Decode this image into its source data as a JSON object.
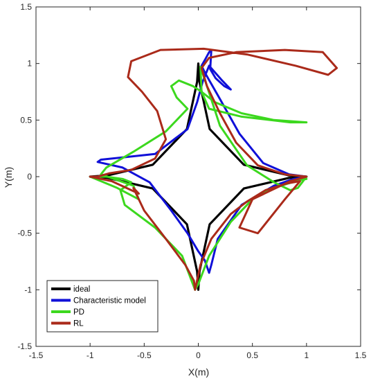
{
  "chart_data": {
    "type": "line",
    "title": "",
    "xlabel": "X(m)",
    "ylabel": "Y(m)",
    "xlim": [
      -1.5,
      1.5
    ],
    "ylim": [
      -1.5,
      1.5
    ],
    "xticks": [
      -1.5,
      -1,
      -0.5,
      0,
      0.5,
      1,
      1.5
    ],
    "yticks": [
      -1.5,
      -1,
      -0.5,
      0,
      0.5,
      1,
      1.5
    ],
    "xtick_labels": [
      "-1.5",
      "-1",
      "-0.5",
      "0",
      "0.5",
      "1",
      "1.5"
    ],
    "ytick_labels": [
      "-1.5",
      "-1",
      "-0.5",
      "0",
      "0.5",
      "1",
      "1.5"
    ],
    "grid": false,
    "legend_position": "bottom-left",
    "series": [
      {
        "name": "ideal",
        "color": "#000000",
        "x": [
          1,
          0.838,
          0.421,
          0.105,
          0.011,
          0,
          -0.011,
          -0.105,
          -0.421,
          -0.838,
          -1,
          -0.838,
          -0.421,
          -0.105,
          -0.011,
          0,
          0.011,
          0.105,
          0.421,
          0.838,
          1
        ],
        "y": [
          0,
          0.011,
          0.105,
          0.421,
          0.838,
          1,
          0.838,
          0.421,
          0.105,
          0.011,
          0,
          -0.011,
          -0.105,
          -0.421,
          -0.838,
          -1,
          -0.838,
          -0.421,
          -0.105,
          -0.011,
          0
        ]
      },
      {
        "name": "Characteristic model",
        "color": "#1010d8",
        "x": [
          1,
          0.84,
          0.6,
          0.38,
          0.18,
          0.06,
          0.03,
          0.06,
          0.1,
          0.12,
          0.11,
          0.16,
          0.24,
          0.3,
          0.22,
          0.1,
          0.04,
          -0.01,
          -0.1,
          -0.4,
          -0.7,
          -0.9,
          -0.93,
          -0.7,
          -0.45,
          -0.25,
          -0.1,
          0,
          0.06,
          0.1,
          0.12,
          0.18,
          0.4,
          0.7,
          0.88,
          1
        ],
        "y": [
          0,
          0.02,
          0.12,
          0.38,
          0.72,
          0.92,
          0.98,
          1.03,
          1.1,
          1.12,
          0.95,
          0.87,
          0.8,
          0.77,
          0.85,
          0.98,
          0.84,
          0.66,
          0.42,
          0.2,
          0.17,
          0.15,
          0.13,
          0.08,
          -0.05,
          -0.3,
          -0.5,
          -0.66,
          -0.74,
          -0.85,
          -0.78,
          -0.55,
          -0.25,
          -0.08,
          -0.02,
          0
        ]
      },
      {
        "name": "PD",
        "color": "#3cd81e",
        "x": [
          1,
          0.96,
          0.92,
          0.85,
          0.7,
          0.45,
          0.2,
          0.08,
          0.02,
          0.03,
          0.1,
          0.4,
          0.85,
          1.0,
          0.7,
          0.4,
          0.15,
          0.03,
          -0.05,
          -0.18,
          -0.25,
          -0.2,
          -0.1,
          -0.3,
          -0.6,
          -0.85,
          -0.9,
          -0.75,
          -0.6,
          -0.55,
          -0.75,
          -0.95,
          -1,
          -0.85,
          -0.7,
          -0.62,
          -0.72,
          -0.68,
          -0.4,
          -0.15,
          -0.05,
          -0.03,
          0.0,
          0.1,
          0.3,
          0.5,
          0.7,
          0.9,
          1.0,
          0.98,
          1
        ],
        "y": [
          0,
          -0.05,
          -0.1,
          -0.12,
          -0.05,
          0.1,
          0.45,
          0.8,
          0.97,
          0.75,
          0.6,
          0.53,
          0.48,
          0.48,
          0.5,
          0.56,
          0.66,
          0.75,
          0.8,
          0.85,
          0.8,
          0.7,
          0.6,
          0.4,
          0.22,
          0.08,
          0.02,
          -0.03,
          -0.08,
          -0.2,
          -0.1,
          -0.02,
          0,
          0,
          -0.02,
          -0.05,
          -0.12,
          -0.25,
          -0.45,
          -0.7,
          -0.95,
          -1.0,
          -0.95,
          -0.7,
          -0.4,
          -0.2,
          -0.1,
          -0.04,
          -0.02,
          -0.01,
          0
        ]
      },
      {
        "name": "RL",
        "color": "#aa2a1a",
        "x": [
          1,
          0.8,
          0.55,
          0.35,
          0.2,
          0.08,
          0.03,
          0.1,
          0.35,
          0.8,
          1.15,
          1.28,
          1.2,
          0.9,
          0.45,
          0.05,
          -0.35,
          -0.62,
          -0.65,
          -0.52,
          -0.38,
          -0.3,
          -0.4,
          -0.62,
          -0.82,
          -0.93,
          -1,
          -0.8,
          -0.55,
          -0.6,
          -0.5,
          -0.3,
          -0.12,
          -0.04,
          -0.03,
          0.02,
          0.12,
          0.3,
          0.45,
          0.62,
          0.82,
          0.94,
          0.8,
          0.55,
          0.38,
          0.5,
          0.85,
          1
        ],
        "y": [
          0,
          0.02,
          0.1,
          0.3,
          0.56,
          0.8,
          0.96,
          1.05,
          1.1,
          1.12,
          1.1,
          0.96,
          0.9,
          0.98,
          1.08,
          1.13,
          1.12,
          1.02,
          0.88,
          0.75,
          0.58,
          0.33,
          0.16,
          0.06,
          0.03,
          0.0,
          0,
          -0.04,
          -0.15,
          -0.1,
          -0.3,
          -0.55,
          -0.78,
          -0.92,
          -1.0,
          -0.78,
          -0.55,
          -0.33,
          -0.22,
          -0.12,
          -0.06,
          -0.04,
          -0.2,
          -0.5,
          -0.45,
          -0.2,
          -0.04,
          0
        ]
      }
    ]
  }
}
